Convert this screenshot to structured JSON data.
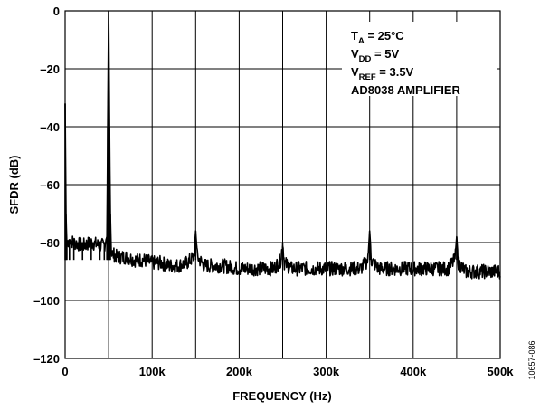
{
  "chart_data": {
    "type": "line",
    "title": "",
    "xlabel": "FREQUENCY (Hz)",
    "ylabel": "SFDR (dB)",
    "xlim": [
      0,
      500000
    ],
    "ylim": [
      -120,
      0
    ],
    "x_ticks": [
      0,
      50000,
      100000,
      150000,
      200000,
      250000,
      300000,
      350000,
      400000,
      450000,
      500000
    ],
    "x_tick_labels": [
      "0",
      "",
      "100k",
      "",
      "200k",
      "",
      "300k",
      "",
      "400k",
      "",
      "500k"
    ],
    "y_ticks": [
      0,
      -20,
      -40,
      -60,
      -80,
      -100,
      -120
    ],
    "y_tick_labels": [
      "0",
      "–20",
      "–40",
      "–60",
      "–80",
      "–100",
      "–120"
    ],
    "grid": true,
    "series": [
      {
        "x": [
          0,
          1000,
          2000,
          5000,
          10000,
          20000,
          30000,
          40000,
          45000,
          48000,
          49000,
          50000,
          51000,
          52000,
          53000,
          55000,
          60000,
          70000,
          80000,
          90000,
          100000,
          110000,
          120000,
          130000,
          140000,
          148000,
          150000,
          152000,
          160000,
          180000,
          200000,
          220000,
          240000,
          248000,
          250000,
          252000,
          260000,
          280000,
          300000,
          320000,
          340000,
          348000,
          350000,
          352000,
          360000,
          380000,
          400000,
          420000,
          440000,
          448000,
          450000,
          452000,
          460000,
          480000,
          500000
        ],
        "y": [
          -32,
          -70,
          -80,
          -79,
          -80,
          -81,
          -80,
          -81,
          -81,
          -78,
          -40,
          0,
          -40,
          -70,
          -83,
          -84,
          -85,
          -85,
          -86,
          -86,
          -87,
          -87,
          -88,
          -88,
          -87,
          -85,
          -76,
          -85,
          -88,
          -88,
          -89,
          -89,
          -89,
          -86,
          -80,
          -87,
          -89,
          -89,
          -89,
          -89,
          -89,
          -86,
          -76,
          -86,
          -89,
          -89,
          -89,
          -89,
          -89,
          -86,
          -78,
          -87,
          -90,
          -90,
          -90
        ]
      }
    ],
    "annotations": [
      {
        "text": "T",
        "sub": "A",
        "rest": " = 25°C"
      },
      {
        "text": "V",
        "sub": "DD",
        "rest": " = 5V"
      },
      {
        "text": "V",
        "sub": "REF",
        "rest": " = 3.5V"
      },
      {
        "text": "AD8038 AMPLIFIER",
        "sub": "",
        "rest": ""
      }
    ],
    "figure_id": "10657-086"
  }
}
